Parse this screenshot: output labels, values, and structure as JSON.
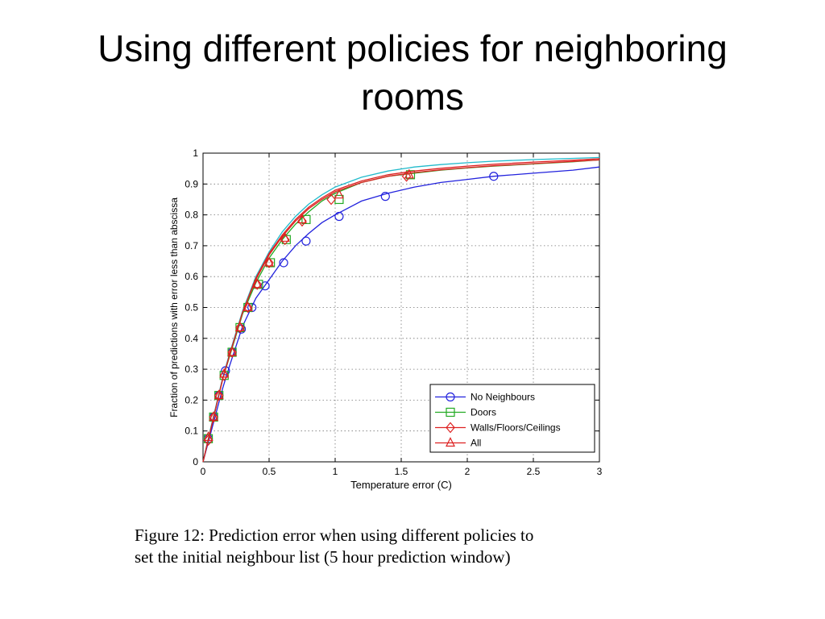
{
  "slide": {
    "title_line1": "Using different policies for neighboring",
    "title_line2": "rooms"
  },
  "caption": {
    "line1": "Figure 12: Prediction error when using different policies to",
    "line2": "set the initial neighbour list (5 hour prediction window)"
  },
  "chart_data": {
    "type": "line",
    "title": "",
    "xlabel": "Temperature error (C)",
    "ylabel": "Fraction of predictions with error less than abscissa",
    "xlim": [
      0,
      3
    ],
    "ylim": [
      0,
      1
    ],
    "xticks": [
      0,
      0.5,
      1,
      1.5,
      2,
      2.5,
      3
    ],
    "xtick_labels": [
      "0",
      "0.5",
      "1",
      "1.5",
      "2",
      "2.5",
      "3"
    ],
    "yticks": [
      0,
      0.1,
      0.2,
      0.3,
      0.4,
      0.5,
      0.6,
      0.7,
      0.8,
      0.9,
      1
    ],
    "ytick_labels": [
      "0",
      "0.1",
      "0.2",
      "0.3",
      "0.4",
      "0.5",
      "0.6",
      "0.7",
      "0.8",
      "0.9",
      "1"
    ],
    "grid": true,
    "legend_position": "bottom-right",
    "series": [
      {
        "name": "No Neighbours",
        "color": "#2222dd",
        "marker": "circle",
        "x": [
          0,
          0.05,
          0.1,
          0.15,
          0.2,
          0.3,
          0.4,
          0.5,
          0.6,
          0.7,
          0.8,
          0.9,
          1.0,
          1.2,
          1.4,
          1.6,
          1.8,
          2.0,
          2.2,
          2.5,
          2.8,
          3.0
        ],
        "y": [
          0,
          0.08,
          0.16,
          0.24,
          0.31,
          0.44,
          0.53,
          0.59,
          0.65,
          0.7,
          0.74,
          0.775,
          0.8,
          0.845,
          0.87,
          0.89,
          0.905,
          0.915,
          0.925,
          0.935,
          0.945,
          0.955
        ],
        "markers_x": [
          0.04,
          0.08,
          0.12,
          0.17,
          0.22,
          0.29,
          0.37,
          0.47,
          0.61,
          0.78,
          1.03,
          1.38,
          2.2
        ],
        "markers_y": [
          0.075,
          0.145,
          0.215,
          0.295,
          0.355,
          0.43,
          0.5,
          0.57,
          0.645,
          0.715,
          0.795,
          0.86,
          0.925
        ]
      },
      {
        "name": "Doors",
        "color": "#22aa22",
        "marker": "square",
        "x": [
          0,
          0.05,
          0.1,
          0.15,
          0.2,
          0.3,
          0.4,
          0.5,
          0.6,
          0.7,
          0.8,
          0.9,
          1.0,
          1.2,
          1.4,
          1.6,
          1.8,
          2.0,
          2.2,
          2.5,
          2.8,
          3.0
        ],
        "y": [
          0,
          0.09,
          0.18,
          0.27,
          0.34,
          0.48,
          0.58,
          0.66,
          0.72,
          0.77,
          0.81,
          0.845,
          0.87,
          0.905,
          0.925,
          0.935,
          0.945,
          0.952,
          0.958,
          0.965,
          0.972,
          0.978
        ],
        "markers_x": [
          0.04,
          0.08,
          0.12,
          0.16,
          0.22,
          0.28,
          0.34,
          0.42,
          0.51,
          0.63,
          0.78,
          1.03,
          1.57
        ],
        "markers_y": [
          0.075,
          0.145,
          0.215,
          0.28,
          0.355,
          0.435,
          0.5,
          0.575,
          0.645,
          0.72,
          0.785,
          0.85,
          0.93
        ]
      },
      {
        "name": "Walls/Floors/Ceilings",
        "color": "#dd2222",
        "marker": "diamond",
        "x": [
          0,
          0.05,
          0.1,
          0.15,
          0.2,
          0.3,
          0.4,
          0.5,
          0.6,
          0.7,
          0.8,
          0.9,
          1.0,
          1.2,
          1.4,
          1.6,
          1.8,
          2.0,
          2.2,
          2.5,
          2.8,
          3.0
        ],
        "y": [
          0,
          0.09,
          0.18,
          0.27,
          0.345,
          0.485,
          0.59,
          0.67,
          0.73,
          0.78,
          0.82,
          0.85,
          0.875,
          0.905,
          0.925,
          0.937,
          0.946,
          0.953,
          0.959,
          0.966,
          0.973,
          0.978
        ],
        "markers_x": [
          0.04,
          0.08,
          0.12,
          0.16,
          0.22,
          0.28,
          0.34,
          0.41,
          0.5,
          0.62,
          0.75,
          0.97,
          1.54
        ],
        "markers_y": [
          0.07,
          0.145,
          0.215,
          0.28,
          0.355,
          0.435,
          0.5,
          0.575,
          0.645,
          0.72,
          0.78,
          0.85,
          0.925
        ]
      },
      {
        "name": "All",
        "color": "#dd2222",
        "marker": "triangle",
        "x": [
          0,
          0.05,
          0.1,
          0.15,
          0.2,
          0.3,
          0.4,
          0.5,
          0.6,
          0.7,
          0.8,
          0.9,
          1.0,
          1.2,
          1.4,
          1.6,
          1.8,
          2.0,
          2.2,
          2.5,
          2.8,
          3.0
        ],
        "y": [
          0,
          0.09,
          0.18,
          0.27,
          0.345,
          0.485,
          0.595,
          0.675,
          0.735,
          0.785,
          0.825,
          0.855,
          0.88,
          0.91,
          0.93,
          0.942,
          0.951,
          0.958,
          0.964,
          0.971,
          0.977,
          0.982
        ],
        "markers_x": [
          0.04,
          0.08,
          0.12,
          0.16,
          0.22,
          0.28,
          0.34,
          0.41,
          0.5,
          0.62,
          0.75,
          1.03,
          1.56
        ],
        "markers_y": [
          0.08,
          0.145,
          0.215,
          0.285,
          0.355,
          0.435,
          0.5,
          0.575,
          0.645,
          0.725,
          0.785,
          0.865,
          0.93
        ]
      },
      {
        "name": "",
        "color": "#22bbcc",
        "marker": "none",
        "x": [
          0,
          0.05,
          0.1,
          0.15,
          0.2,
          0.3,
          0.4,
          0.5,
          0.6,
          0.7,
          0.8,
          0.9,
          1.0,
          1.2,
          1.4,
          1.6,
          1.8,
          2.0,
          2.2,
          2.5,
          2.8,
          3.0
        ],
        "y": [
          0,
          0.095,
          0.185,
          0.275,
          0.35,
          0.49,
          0.6,
          0.68,
          0.745,
          0.795,
          0.835,
          0.865,
          0.89,
          0.922,
          0.942,
          0.955,
          0.963,
          0.969,
          0.974,
          0.979,
          0.983,
          0.986
        ]
      }
    ]
  }
}
